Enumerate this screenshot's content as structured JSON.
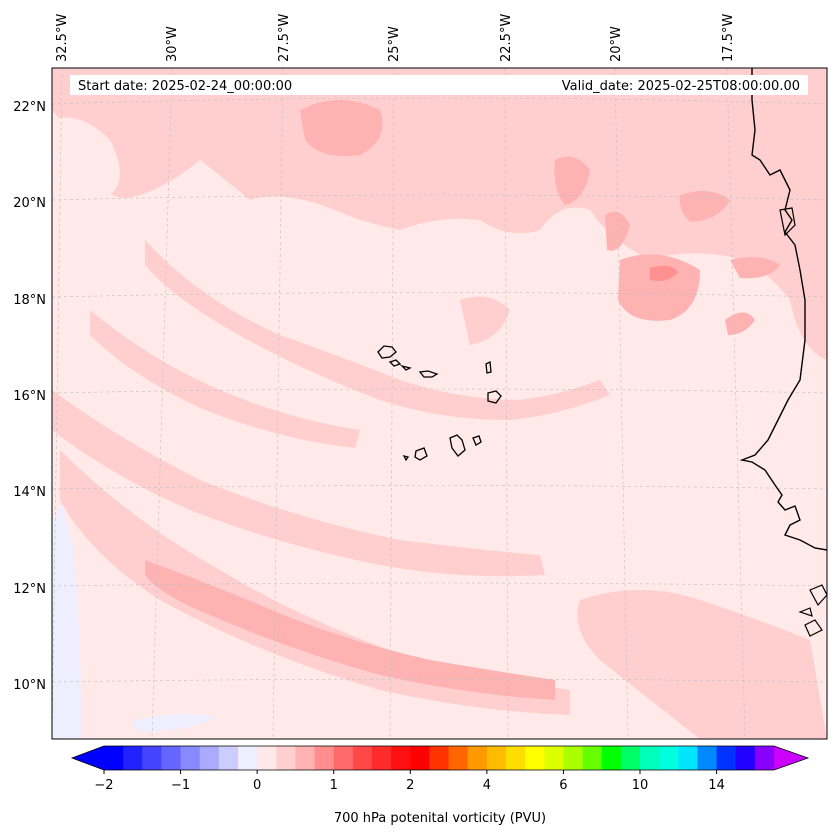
{
  "header": {
    "start_date": "Start date: 2025-02-24_00:00:00",
    "valid_date": "Valid_date: 2025-02-25T08:00:00.00"
  },
  "map": {
    "lon_labels": [
      "32.5°W",
      "30°W",
      "27.5°W",
      "25°W",
      "22.5°W",
      "20°W",
      "17.5°W"
    ],
    "lat_labels": [
      "22°N",
      "20°N",
      "18°N",
      "16°N",
      "14°N",
      "12°N",
      "10°N"
    ],
    "colors": {
      "background_field": "#ffe9e9",
      "light_red": "#ffcfcf",
      "medium_red": "#ffb2b2",
      "dark_red": "#ff9090",
      "light_blue": "#eeeeff",
      "coastline": "#000000"
    }
  },
  "colorbar": {
    "label": "700 hPa potenital vorticity (PVU)",
    "tick_labels": [
      "−2",
      "−1",
      "0",
      "1",
      "2",
      "4",
      "6",
      "10",
      "14"
    ],
    "colors": [
      "#0000ff",
      "#2222ff",
      "#4444ff",
      "#6666ff",
      "#8888ff",
      "#aaaaff",
      "#ccccff",
      "#eeeeff",
      "#ffe9e9",
      "#ffcfcf",
      "#ffb2b2",
      "#ff8f8f",
      "#ff6b6b",
      "#ff4848",
      "#ff2a2a",
      "#ff1010",
      "#ff0000",
      "#ff3300",
      "#ff6600",
      "#ff9900",
      "#ffbb00",
      "#ffdd00",
      "#ffff00",
      "#ddff00",
      "#aaff00",
      "#66ff00",
      "#00ff00",
      "#00ff66",
      "#00ffbb",
      "#00ffdd",
      "#00e5ff",
      "#0088ff",
      "#0033ff",
      "#2200ff",
      "#8800ff"
    ],
    "extend_low_color": "#0000ff",
    "extend_high_color": "#cc00ff"
  }
}
